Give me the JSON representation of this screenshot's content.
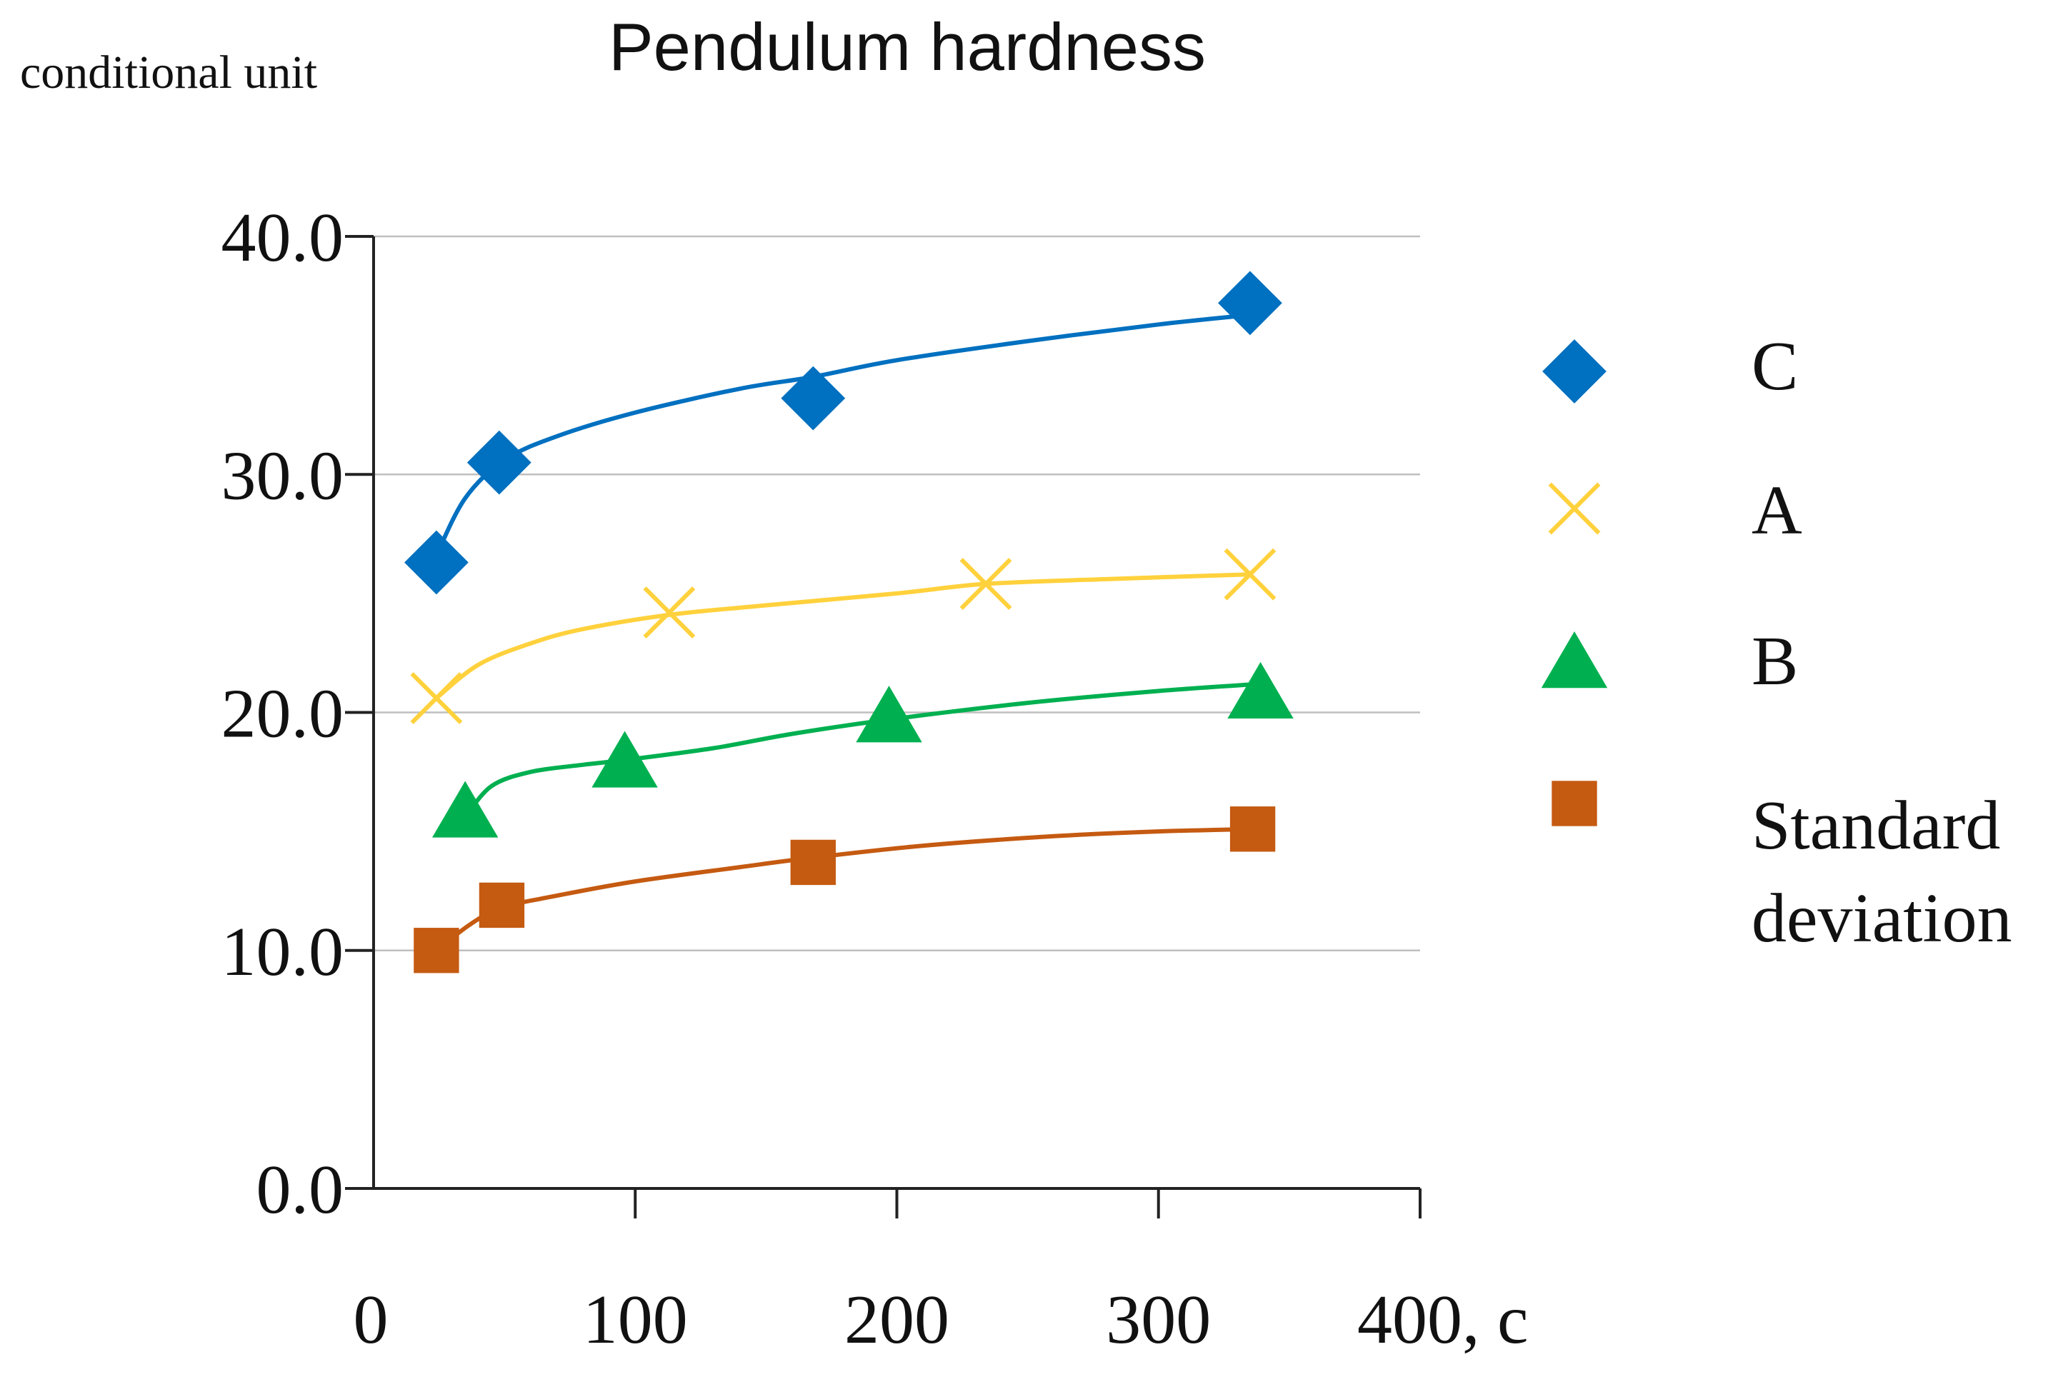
{
  "chart_data": {
    "type": "scatter",
    "title": "Pendulum hardness",
    "ylabel": "conditional unit",
    "xlabel": "",
    "xlim": [
      0,
      400
    ],
    "ylim": [
      0,
      40
    ],
    "x_ticks": [
      0,
      100,
      200,
      300,
      400
    ],
    "x_tick_labels": [
      "0",
      "100",
      "200",
      "300",
      "400, c"
    ],
    "y_ticks": [
      0,
      10,
      20,
      30,
      40
    ],
    "y_tick_labels": [
      "0.0",
      "10.0",
      "20.0",
      "30.0",
      "40.0"
    ],
    "grid": "horizontal",
    "legend_position": "right",
    "series": [
      {
        "name": "C",
        "marker": "diamond",
        "color": "#0070c0",
        "x": [
          24,
          48,
          168,
          335
        ],
        "y": [
          26.3,
          30.5,
          33.2,
          37.2
        ],
        "trend": [
          [
            24,
            26.6
          ],
          [
            35,
            29.0
          ],
          [
            50,
            30.6
          ],
          [
            70,
            31.6
          ],
          [
            100,
            32.6
          ],
          [
            140,
            33.6
          ],
          [
            168,
            34.1
          ],
          [
            200,
            34.8
          ],
          [
            250,
            35.6
          ],
          [
            300,
            36.3
          ],
          [
            335,
            36.7
          ]
        ]
      },
      {
        "name": "A",
        "marker": "x",
        "color": "#ffd13c",
        "x": [
          24,
          113,
          234,
          335
        ],
        "y": [
          20.6,
          24.2,
          25.4,
          25.8
        ],
        "trend": [
          [
            24,
            20.6
          ],
          [
            40,
            22.0
          ],
          [
            60,
            22.9
          ],
          [
            80,
            23.5
          ],
          [
            113,
            24.1
          ],
          [
            150,
            24.5
          ],
          [
            200,
            25.0
          ],
          [
            234,
            25.4
          ],
          [
            280,
            25.6
          ],
          [
            335,
            25.8
          ]
        ]
      },
      {
        "name": "B",
        "marker": "triangle",
        "color": "#00b050",
        "x": [
          35,
          96,
          197,
          339
        ],
        "y": [
          15.8,
          17.9,
          19.8,
          20.8
        ],
        "trend": [
          [
            35,
            15.6
          ],
          [
            45,
            16.9
          ],
          [
            60,
            17.5
          ],
          [
            80,
            17.8
          ],
          [
            96,
            18.0
          ],
          [
            130,
            18.5
          ],
          [
            160,
            19.1
          ],
          [
            197,
            19.7
          ],
          [
            250,
            20.4
          ],
          [
            300,
            20.9
          ],
          [
            339,
            21.2
          ]
        ]
      },
      {
        "name": "Standard deviation",
        "marker": "square",
        "color": "#c55a11",
        "x": [
          24,
          49,
          168,
          336
        ],
        "y": [
          10.0,
          11.9,
          13.7,
          15.1
        ],
        "trend": [
          [
            24,
            10.0
          ],
          [
            37,
            11.1
          ],
          [
            49,
            11.8
          ],
          [
            70,
            12.3
          ],
          [
            100,
            12.9
          ],
          [
            140,
            13.5
          ],
          [
            168,
            13.9
          ],
          [
            210,
            14.4
          ],
          [
            260,
            14.8
          ],
          [
            300,
            15.0
          ],
          [
            336,
            15.1
          ]
        ]
      }
    ]
  }
}
